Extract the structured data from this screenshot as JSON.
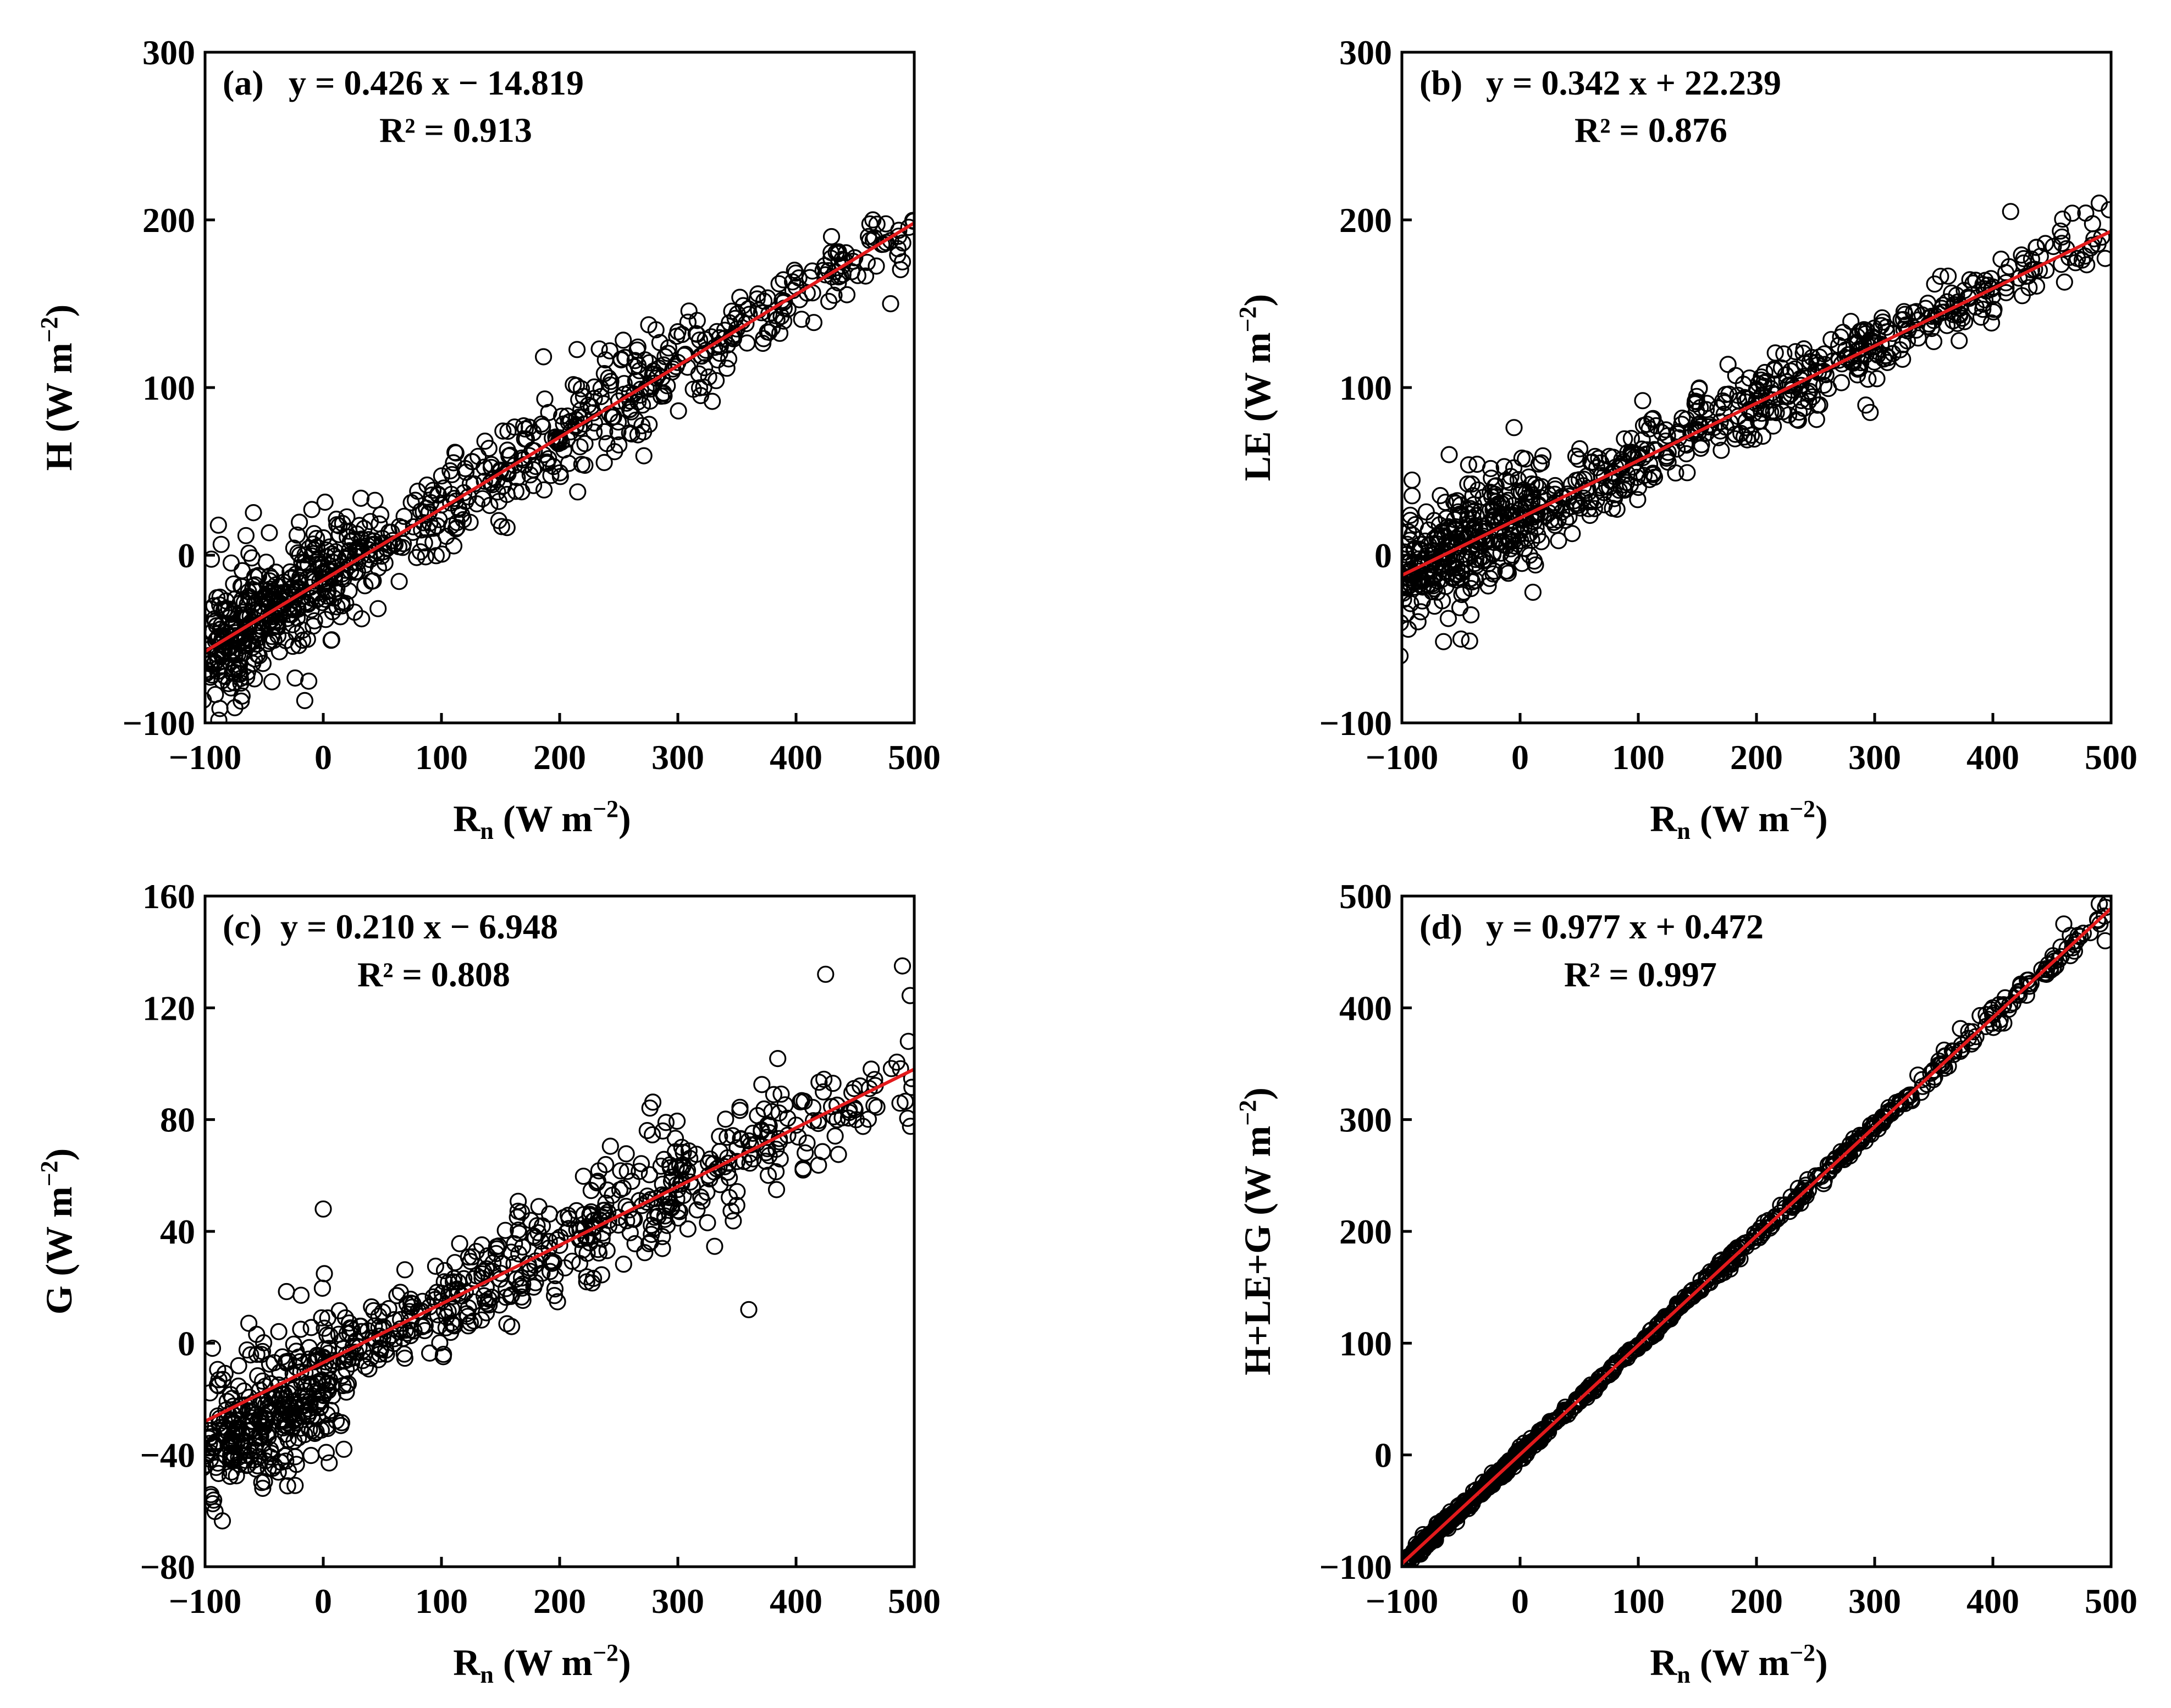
{
  "figure": {
    "panels": [
      "panel_a",
      "panel_b",
      "panel_c",
      "panel_d"
    ]
  },
  "colors": {
    "points": "#000000",
    "fit_line": "#e31a1c",
    "frame": "#000000",
    "background": "#ffffff"
  },
  "panel_a": {
    "label": "(a)",
    "equation": "y = 0.426 x − 14.819",
    "r2": "R² = 0.913",
    "xlabel_main": "R",
    "xlabel_sub": "n",
    "xlabel_units": " (W m",
    "xlabel_exp": "−2",
    "xlabel_close": ")",
    "ylabel": "H (W m",
    "ylabel_exp": "−2",
    "ylabel_close": ")",
    "xticks": [
      "−100",
      "0",
      "100",
      "200",
      "300",
      "400",
      "500"
    ],
    "yticks": [
      "−100",
      "0",
      "100",
      "200",
      "300"
    ]
  },
  "panel_b": {
    "label": "(b)",
    "equation": "y = 0.342 x + 22.239",
    "r2": "R² = 0.876",
    "xlabel_main": "R",
    "xlabel_sub": "n",
    "xlabel_units": " (W m",
    "xlabel_exp": "−2",
    "xlabel_close": ")",
    "ylabel": "LE (W m",
    "ylabel_exp": "−2",
    "ylabel_close": ")",
    "xticks": [
      "−100",
      "0",
      "100",
      "200",
      "300",
      "400",
      "500"
    ],
    "yticks": [
      "−100",
      "0",
      "100",
      "200",
      "300"
    ]
  },
  "panel_c": {
    "label": "(c)",
    "equation": "y = 0.210 x − 6.948",
    "r2": "R² = 0.808",
    "xlabel_main": "R",
    "xlabel_sub": "n",
    "xlabel_units": " (W m",
    "xlabel_exp": "−2",
    "xlabel_close": ")",
    "ylabel": "G (W m",
    "ylabel_exp": "−2",
    "ylabel_close": ")",
    "xticks": [
      "−100",
      "0",
      "100",
      "200",
      "300",
      "400",
      "500"
    ],
    "yticks": [
      "−80",
      "−40",
      "0",
      "40",
      "80",
      "120",
      "160"
    ]
  },
  "panel_d": {
    "label": "(d)",
    "equation": "y = 0.977 x + 0.472",
    "r2": "R² = 0.997",
    "xlabel_main": "R",
    "xlabel_sub": "n",
    "xlabel_units": " (W m",
    "xlabel_exp": "−2",
    "xlabel_close": ")",
    "ylabel": "H+LE+G (W m",
    "ylabel_exp": "−2",
    "ylabel_close": ")",
    "xticks": [
      "−100",
      "0",
      "100",
      "200",
      "300",
      "400",
      "500"
    ],
    "yticks": [
      "−100",
      "0",
      "100",
      "200",
      "300",
      "400",
      "500"
    ]
  },
  "chart_data": [
    {
      "id": "a",
      "type": "scatter",
      "title": "(a)",
      "xlabel": "Rn (W m−2)",
      "ylabel": "H (W m−2)",
      "xlim": [
        -100,
        500
      ],
      "ylim": [
        -100,
        300
      ],
      "xtick_values": [
        -100,
        0,
        100,
        200,
        300,
        400,
        500
      ],
      "ytick_values": [
        -100,
        0,
        100,
        200,
        300
      ],
      "fit": {
        "slope": 0.426,
        "intercept": -14.819,
        "r2": 0.913
      },
      "n_points": 820,
      "point_noise": [
        0,
        8,
        40,
        22,
        30,
        18
      ],
      "seed": 11,
      "points_sample": [
        [
          -95,
          -32
        ],
        [
          -60,
          -55
        ],
        [
          -20,
          -15
        ],
        [
          0,
          -10
        ],
        [
          50,
          10
        ],
        [
          100,
          30
        ],
        [
          150,
          50
        ],
        [
          200,
          70
        ],
        [
          250,
          92
        ],
        [
          300,
          115
        ],
        [
          350,
          135
        ],
        [
          400,
          160
        ],
        [
          430,
          190
        ],
        [
          465,
          200
        ],
        [
          490,
          175
        ],
        [
          480,
          150
        ]
      ]
    },
    {
      "id": "b",
      "type": "scatter",
      "title": "(b)",
      "xlabel": "Rn (W m−2)",
      "ylabel": "LE (W m−2)",
      "xlim": [
        -100,
        500
      ],
      "ylim": [
        -100,
        300
      ],
      "xtick_values": [
        -100,
        0,
        100,
        200,
        300,
        400,
        500
      ],
      "ytick_values": [
        -100,
        0,
        100,
        200,
        300
      ],
      "fit": {
        "slope": 0.342,
        "intercept": 22.239,
        "r2": 0.876
      },
      "n_points": 820,
      "point_noise": [
        0,
        8,
        35,
        20,
        22,
        16
      ],
      "seed": 23,
      "points_sample": [
        [
          -95,
          -10
        ],
        [
          -60,
          60
        ],
        [
          -50,
          -50
        ],
        [
          0,
          15
        ],
        [
          50,
          45
        ],
        [
          100,
          60
        ],
        [
          150,
          75
        ],
        [
          200,
          92
        ],
        [
          250,
          110
        ],
        [
          300,
          125
        ],
        [
          350,
          140
        ],
        [
          400,
          160
        ],
        [
          415,
          205
        ],
        [
          490,
          210
        ],
        [
          495,
          177
        ]
      ]
    },
    {
      "id": "c",
      "type": "scatter",
      "title": "(c)",
      "xlabel": "Rn (W m−2)",
      "ylabel": "G (W m−2)",
      "xlim": [
        -100,
        500
      ],
      "ylim": [
        -80,
        160
      ],
      "xtick_values": [
        -100,
        0,
        100,
        200,
        300,
        400,
        500
      ],
      "ytick_values": [
        -80,
        -40,
        0,
        40,
        80,
        120,
        160
      ],
      "fit": {
        "slope": 0.21,
        "intercept": -6.948,
        "r2": 0.808
      },
      "n_points": 820,
      "point_noise": [
        -8,
        6,
        25,
        14,
        20,
        18
      ],
      "seed": 37,
      "points_sample": [
        [
          -95,
          -55
        ],
        [
          -50,
          -30
        ],
        [
          0,
          -5
        ],
        [
          0,
          48
        ],
        [
          50,
          5
        ],
        [
          100,
          15
        ],
        [
          150,
          25
        ],
        [
          200,
          35
        ],
        [
          250,
          45
        ],
        [
          300,
          55
        ],
        [
          350,
          65
        ],
        [
          400,
          78
        ],
        [
          425,
          132
        ],
        [
          490,
          135
        ],
        [
          495,
          108
        ],
        [
          360,
          12
        ]
      ]
    },
    {
      "id": "d",
      "type": "scatter",
      "title": "(d)",
      "xlabel": "Rn (W m−2)",
      "ylabel": "H+LE+G (W m−2)",
      "xlim": [
        -100,
        500
      ],
      "ylim": [
        -100,
        500
      ],
      "xtick_values": [
        -100,
        0,
        100,
        200,
        300,
        400,
        500
      ],
      "ytick_values": [
        -100,
        0,
        100,
        200,
        300,
        400,
        500
      ],
      "fit": {
        "slope": 0.977,
        "intercept": 0.472,
        "r2": 0.997
      },
      "n_points": 820,
      "point_noise": [
        0,
        2,
        4,
        4,
        6,
        10
      ],
      "seed": 53,
      "points_sample": [
        [
          -97,
          -98
        ],
        [
          0,
          0
        ],
        [
          100,
          98
        ],
        [
          200,
          196
        ],
        [
          300,
          293
        ],
        [
          400,
          400
        ],
        [
          460,
          475
        ],
        [
          490,
          493
        ],
        [
          495,
          460
        ]
      ]
    }
  ]
}
